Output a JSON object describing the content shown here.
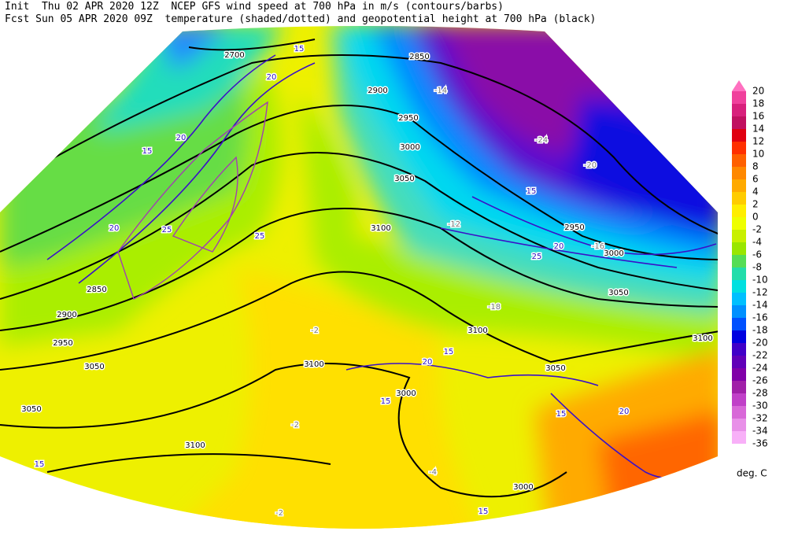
{
  "header": {
    "line1": "Init  Thu 02 APR 2020 12Z  NCEP GFS wind speed at 700 hPa in m/s (contours/barbs)",
    "line2": "Fcst Sun 05 APR 2020 09Z  temperature (shaded/dotted) and geopotential height at 700 hPa (black)"
  },
  "colorbar": {
    "levels": [
      20,
      18,
      16,
      14,
      12,
      10,
      8,
      6,
      4,
      2,
      0,
      -2,
      -4,
      -6,
      -8,
      -10,
      -12,
      -14,
      -16,
      -18,
      -20,
      -22,
      -24,
      -26,
      -28,
      -30,
      -32,
      -34,
      -36
    ],
    "colors": [
      "#f0409c",
      "#d8207c",
      "#c01060",
      "#e00010",
      "#ff3000",
      "#ff6000",
      "#ff8800",
      "#ffaa00",
      "#ffcc00",
      "#ffee00",
      "#eeff00",
      "#c8f000",
      "#99e600",
      "#55dd55",
      "#22ddaa",
      "#00e0e0",
      "#00c0ff",
      "#0090ff",
      "#0050ff",
      "#0000e0",
      "#4000c8",
      "#6000b8",
      "#8000a8",
      "#a020a8",
      "#c040c8",
      "#d868d8",
      "#e890e8",
      "#f8b0f8"
    ],
    "above_color": "#ff70c0",
    "unit": "deg. C"
  },
  "map_labels": {
    "height": [
      "2700",
      "2850",
      "2900",
      "2950",
      "3000",
      "3050",
      "3100",
      "2950",
      "3000",
      "3050",
      "3100",
      "3100",
      "3100",
      "3050",
      "3000",
      "3000",
      "3100",
      "2850",
      "2900",
      "2950",
      "3050",
      "3050"
    ],
    "wind": [
      "15",
      "20",
      "25",
      "15",
      "20",
      "25",
      "20",
      "15",
      "20",
      "25",
      "15",
      "15",
      "20",
      "15",
      "15",
      "20",
      "15"
    ],
    "temperature": [
      "-2",
      "-2",
      "-4",
      "-2",
      "-12",
      "-18",
      "-24",
      "-20",
      "-16",
      "-14"
    ]
  }
}
